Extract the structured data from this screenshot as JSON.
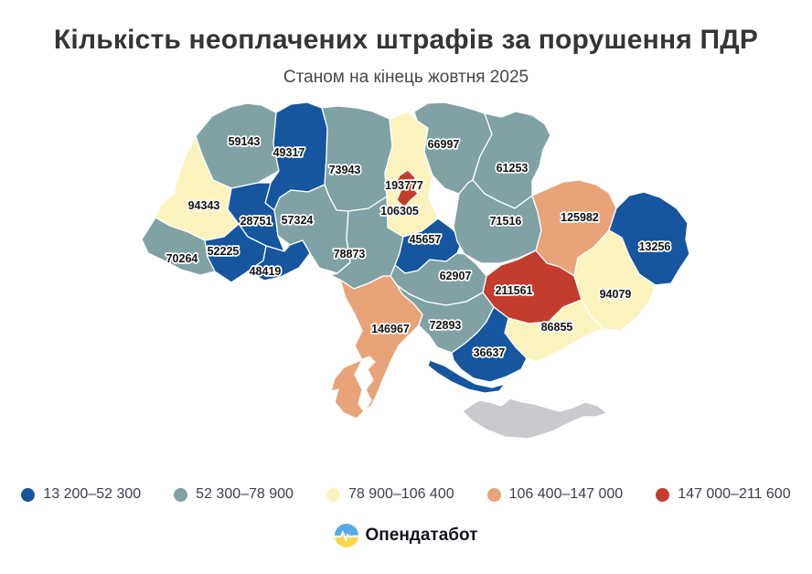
{
  "header": {
    "title": "Кількість неоплачених штрафів за порушення ПДР",
    "subtitle": "Станом на кінець жовтня 2025"
  },
  "legend": [
    {
      "label": "13 200–52 300",
      "color": "#15569f"
    },
    {
      "label": "52 300–78 900",
      "color": "#80a2a4"
    },
    {
      "label": "78 900–106 400",
      "color": "#faf3bd"
    },
    {
      "label": "106 400–147 000",
      "color": "#e8a378"
    },
    {
      "label": "147 000–211 600",
      "color": "#c23d2e"
    }
  ],
  "no_data_color": "#c9cacd",
  "footer": {
    "brand": "Опендатабот"
  },
  "chart_data": {
    "type": "choropleth",
    "area": "Ukraine oblasts",
    "title": "Кількість неоплачених штрафів за порушення ПДР",
    "subtitle": "Станом на кінець жовтня 2025",
    "buckets": [
      "13 200–52 300",
      "52 300–78 900",
      "78 900–106 400",
      "106 400–147 000",
      "147 000–211 600"
    ],
    "regions": [
      {
        "key": "volyn",
        "value": 59143,
        "bucket": 1
      },
      {
        "key": "rivne",
        "value": 49317,
        "bucket": 0
      },
      {
        "key": "zhytomyr",
        "value": 73943,
        "bucket": 1
      },
      {
        "key": "kyiv_oblast",
        "value": 106305,
        "bucket": 2
      },
      {
        "key": "kyiv_city",
        "value": 193777,
        "bucket": 4
      },
      {
        "key": "chernihiv",
        "value": 66997,
        "bucket": 1
      },
      {
        "key": "sumy",
        "value": 61253,
        "bucket": 1
      },
      {
        "key": "lviv",
        "value": 94343,
        "bucket": 2
      },
      {
        "key": "ternopil",
        "value": 28751,
        "bucket": 0
      },
      {
        "key": "khmelnytskyi",
        "value": 57324,
        "bucket": 1
      },
      {
        "key": "zakarpattia",
        "value": 70264,
        "bucket": 1
      },
      {
        "key": "ivano_frankivsk",
        "value": 52225,
        "bucket": 0
      },
      {
        "key": "chernivtsi",
        "value": 48419,
        "bucket": 0
      },
      {
        "key": "vinnytsia",
        "value": 78873,
        "bucket": 1
      },
      {
        "key": "cherkasy",
        "value": 45657,
        "bucket": 0
      },
      {
        "key": "poltava",
        "value": 71516,
        "bucket": 1
      },
      {
        "key": "kharkiv",
        "value": 125982,
        "bucket": 3
      },
      {
        "key": "luhansk",
        "value": 13256,
        "bucket": 0
      },
      {
        "key": "donetsk",
        "value": 94079,
        "bucket": 2
      },
      {
        "key": "dnipropetrovsk",
        "value": 211561,
        "bucket": 4
      },
      {
        "key": "zaporizhzhia",
        "value": 86855,
        "bucket": 2
      },
      {
        "key": "kirovohrad",
        "value": 62907,
        "bucket": 1
      },
      {
        "key": "mykolaiv",
        "value": 72893,
        "bucket": 1
      },
      {
        "key": "odesa",
        "value": 146967,
        "bucket": 3
      },
      {
        "key": "kherson",
        "value": 36637,
        "bucket": 0
      },
      {
        "key": "crimea",
        "value": null,
        "bucket": null
      }
    ]
  }
}
